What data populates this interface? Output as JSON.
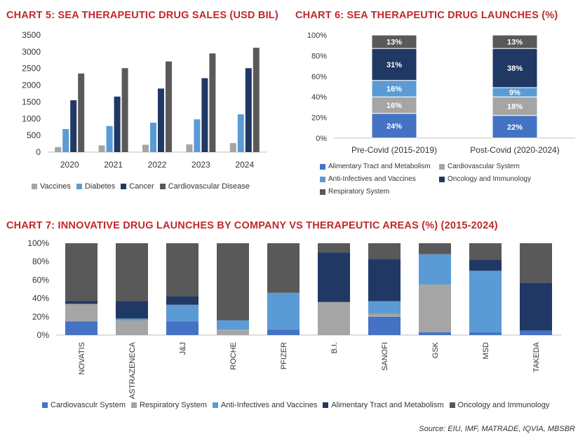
{
  "colors": {
    "title": "#c0282d",
    "vaccines": "#a5a5a5",
    "diabetes": "#5b9bd5",
    "cancer": "#203864",
    "cardiovascular": "#595959",
    "alimentary": "#4472c4",
    "oncology_dark": "#203864",
    "respiratory_dark": "#595959",
    "cardio_grey": "#a5a5a5"
  },
  "chart_data": [
    {
      "id": "chart5",
      "type": "bar",
      "title": "CHART 5: SEA THERAPEUTIC DRUG SALES (USD BIL)",
      "categories": [
        "2020",
        "2021",
        "2022",
        "2023",
        "2024"
      ],
      "ylim": [
        0,
        3500
      ],
      "yticks": [
        "0",
        "500",
        "1000",
        "1500",
        "2000",
        "2500",
        "3000",
        "3500"
      ],
      "series": [
        {
          "name": "Vaccines",
          "color": "#a5a5a5",
          "values": [
            150,
            200,
            220,
            230,
            270
          ]
        },
        {
          "name": "Diabetes",
          "color": "#5b9bd5",
          "values": [
            690,
            780,
            880,
            980,
            1130
          ]
        },
        {
          "name": "Cancer",
          "color": "#203864",
          "values": [
            1550,
            1660,
            1900,
            2210,
            2510
          ]
        },
        {
          "name": "Cardiovascular Disease",
          "color": "#595959",
          "values": [
            2350,
            2510,
            2710,
            2950,
            3120
          ]
        }
      ]
    },
    {
      "id": "chart6",
      "type": "bar",
      "stacked": true,
      "title": "CHART 6: SEA THERAPEUTIC DRUG LAUNCHES (%)",
      "categories": [
        "Pre-Covid (2015-2019)",
        "Post-Covid (2020-2024)"
      ],
      "ylim": [
        0,
        100
      ],
      "yticks": [
        "0%",
        "20%",
        "40%",
        "60%",
        "80%",
        "100%"
      ],
      "series": [
        {
          "name": "Alimentary Tract and Metabolism",
          "color": "#4472c4",
          "values": [
            24,
            22
          ],
          "labels": [
            "24%",
            "22%"
          ]
        },
        {
          "name": "Cardiovascular System",
          "color": "#a5a5a5",
          "values": [
            16,
            18
          ],
          "labels": [
            "16%",
            "18%"
          ]
        },
        {
          "name": "Anti-Infectives and Vaccines",
          "color": "#5b9bd5",
          "values": [
            16,
            9
          ],
          "labels": [
            "16%",
            "9%"
          ]
        },
        {
          "name": "Oncology and Immunology",
          "color": "#203864",
          "values": [
            31,
            38
          ],
          "labels": [
            "31%",
            "38%"
          ]
        },
        {
          "name": "Respiratory System",
          "color": "#595959",
          "values": [
            13,
            13
          ],
          "labels": [
            "13%",
            "13%"
          ]
        }
      ]
    },
    {
      "id": "chart7",
      "type": "bar",
      "stacked": true,
      "title": "CHART 7: INNOVATIVE DRUG LAUNCHES BY COMPANY VS THERAPEUTIC AREAS (%) (2015-2024)",
      "categories": [
        "NOVATIS",
        "ASTRAZENECA",
        "J&J",
        "ROCHE",
        "PFIZER",
        "B.I.",
        "SANOFI",
        "GSK",
        "MSD",
        "TAKEDA"
      ],
      "ylim": [
        0,
        100
      ],
      "yticks": [
        "0%",
        "20%",
        "40%",
        "60%",
        "80%",
        "100%"
      ],
      "series": [
        {
          "name": "Cardiovasculr System",
          "color": "#4472c4",
          "values": [
            15,
            0,
            15,
            0,
            6,
            0,
            20,
            3,
            3,
            5
          ]
        },
        {
          "name": "Respiratory System",
          "color": "#a5a5a5",
          "values": [
            19,
            16,
            0,
            6,
            0,
            36,
            3,
            52,
            0,
            0
          ]
        },
        {
          "name": "Anti-Infectives and Vaccines",
          "color": "#5b9bd5",
          "values": [
            0,
            2,
            18,
            10,
            40,
            0,
            14,
            33,
            67,
            0
          ]
        },
        {
          "name": "Alimentary Tract and Metabolism",
          "color": "#203864",
          "values": [
            3,
            19,
            9,
            0,
            0,
            54,
            46,
            0,
            12,
            52
          ]
        },
        {
          "name": "Oncology and Immunology",
          "color": "#595959",
          "values": [
            63,
            63,
            58,
            84,
            54,
            10,
            17,
            12,
            18,
            43
          ]
        }
      ]
    }
  ],
  "source": "Source: EIU, IMF, MATRADE, IQVIA, MBSBR"
}
